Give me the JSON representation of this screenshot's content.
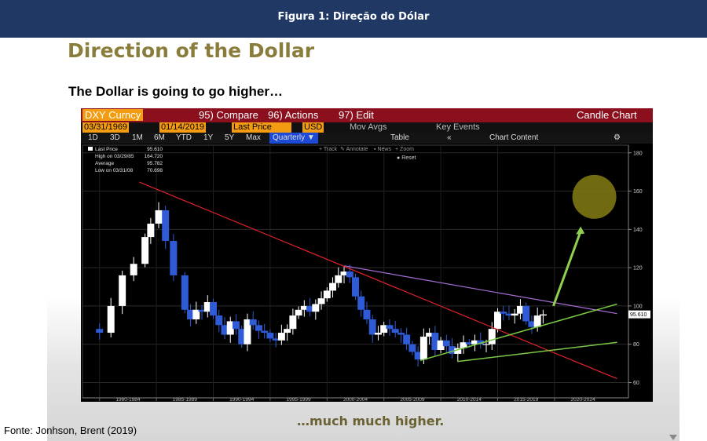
{
  "header": {
    "caption": "Figura 1: Direção do Dólar"
  },
  "slide": {
    "title": "Direction of the Dollar",
    "subtitle": "The Dollar is going to go higher…",
    "footer": "…much much higher."
  },
  "source": "Fonte: Jonhson, Brent (2019)",
  "terminal": {
    "ticker": "DXY Curncy",
    "compare": "95) Compare",
    "actions": "96) Actions",
    "edit": "97) Edit",
    "chart_type": "Candle Chart",
    "start_date": "03/31/1969",
    "end_date": "01/14/2019",
    "field": "Last Price",
    "currency": "USD",
    "mov_avgs": "Mov Avgs",
    "key_events": "Key Events",
    "ranges": [
      "1D",
      "3D",
      "1M",
      "6M",
      "YTD",
      "1Y",
      "5Y",
      "Max"
    ],
    "period": "Quarterly",
    "table_label": "Table",
    "chart_content": "Chart Content",
    "tools": [
      "Track",
      "Annotate",
      "News",
      "Zoom"
    ],
    "reset": "Reset",
    "legend": {
      "last_price_label": "Last Price",
      "last_price": "95.610",
      "high_label": "High on 03/29/85",
      "high": "164.720",
      "average_label": "Average",
      "average": "95.782",
      "low_label": "Low on 03/31/08",
      "low": "70.698"
    },
    "last_value_tag": "95.610"
  },
  "colors": {
    "up": "#ffffff",
    "down": "#2f5bd6",
    "trend_red": "#e0202a",
    "trend_purple": "#a76fd8",
    "trend_green": "#7ac943",
    "arrow": "#8fd14f",
    "target_circle": "#7f7a12"
  },
  "chart_data": {
    "type": "candlestick",
    "y_ticks": [
      60,
      80,
      100,
      120,
      140,
      160,
      180
    ],
    "ylim": [
      52,
      184
    ],
    "xlim": [
      1978.5,
      2026.5
    ],
    "x_tick_labels": [
      "1980-1984",
      "1985-1989",
      "1990-1994",
      "1995-1999",
      "2000-2004",
      "2005-2009",
      "2010-2014",
      "2015-2019",
      "2020-2024"
    ],
    "series": [
      {
        "values": [
          [
            1979.0,
            88
          ],
          [
            1980.0,
            86
          ],
          [
            1981.0,
            100
          ],
          [
            1982.0,
            116
          ],
          [
            1983.0,
            122
          ],
          [
            1984.0,
            136
          ],
          [
            1984.5,
            143
          ],
          [
            1985.2,
            150
          ],
          [
            1985.8,
            134
          ],
          [
            1986.5,
            116
          ],
          [
            1987.5,
            98
          ],
          [
            1988.0,
            93
          ],
          [
            1988.5,
            98
          ],
          [
            1989.0,
            97
          ],
          [
            1989.5,
            102
          ],
          [
            1990.0,
            95
          ],
          [
            1990.5,
            90
          ],
          [
            1991.0,
            85
          ],
          [
            1991.5,
            92
          ],
          [
            1992.0,
            88
          ],
          [
            1992.5,
            80
          ],
          [
            1993.0,
            93
          ],
          [
            1993.5,
            90
          ],
          [
            1994.0,
            87
          ],
          [
            1994.5,
            86
          ],
          [
            1995.0,
            83
          ],
          [
            1995.5,
            82
          ],
          [
            1996.0,
            86
          ],
          [
            1996.5,
            88
          ],
          [
            1997.0,
            95
          ],
          [
            1997.5,
            98
          ],
          [
            1998.0,
            100
          ],
          [
            1998.5,
            97
          ],
          [
            1999.0,
            101
          ],
          [
            1999.5,
            104
          ],
          [
            2000.0,
            108
          ],
          [
            2000.5,
            112
          ],
          [
            2001.0,
            116
          ],
          [
            2001.5,
            118
          ],
          [
            2002.0,
            115
          ],
          [
            2002.5,
            105
          ],
          [
            2003.0,
            98
          ],
          [
            2003.5,
            93
          ],
          [
            2004.0,
            85
          ],
          [
            2004.5,
            86
          ],
          [
            2005.0,
            90
          ],
          [
            2005.5,
            88
          ],
          [
            2006.0,
            86
          ],
          [
            2006.5,
            85
          ],
          [
            2007.0,
            80
          ],
          [
            2007.5,
            76
          ],
          [
            2008.0,
            72
          ],
          [
            2008.5,
            84
          ],
          [
            2009.0,
            86
          ],
          [
            2009.5,
            77
          ],
          [
            2010.0,
            82
          ],
          [
            2010.5,
            79
          ],
          [
            2011.0,
            75
          ],
          [
            2011.5,
            78
          ],
          [
            2012.0,
            81
          ],
          [
            2012.5,
            80
          ],
          [
            2013.0,
            82
          ],
          [
            2013.5,
            80
          ],
          [
            2014.0,
            80
          ],
          [
            2014.5,
            88
          ],
          [
            2015.0,
            97
          ],
          [
            2015.5,
            96
          ],
          [
            2016.0,
            95
          ],
          [
            2016.5,
            96
          ],
          [
            2017.0,
            100
          ],
          [
            2017.5,
            92
          ],
          [
            2018.0,
            89
          ],
          [
            2018.5,
            95
          ],
          [
            2019.0,
            95.61
          ]
        ]
      }
    ],
    "trendlines": [
      {
        "color": "red",
        "from": [
          1983.5,
          164.7
        ],
        "to": [
          2025.5,
          62
        ]
      },
      {
        "color": "purple",
        "from": [
          2001.5,
          121
        ],
        "to": [
          2025.5,
          96
        ]
      },
      {
        "color": "green",
        "from": [
          2008.2,
          71.5
        ],
        "to": [
          2025.5,
          101
        ]
      },
      {
        "color": "green",
        "from": [
          2011.5,
          71
        ],
        "to": [
          2025.5,
          81
        ]
      }
    ],
    "projection_target": [
      2023.5,
      157
    ]
  }
}
